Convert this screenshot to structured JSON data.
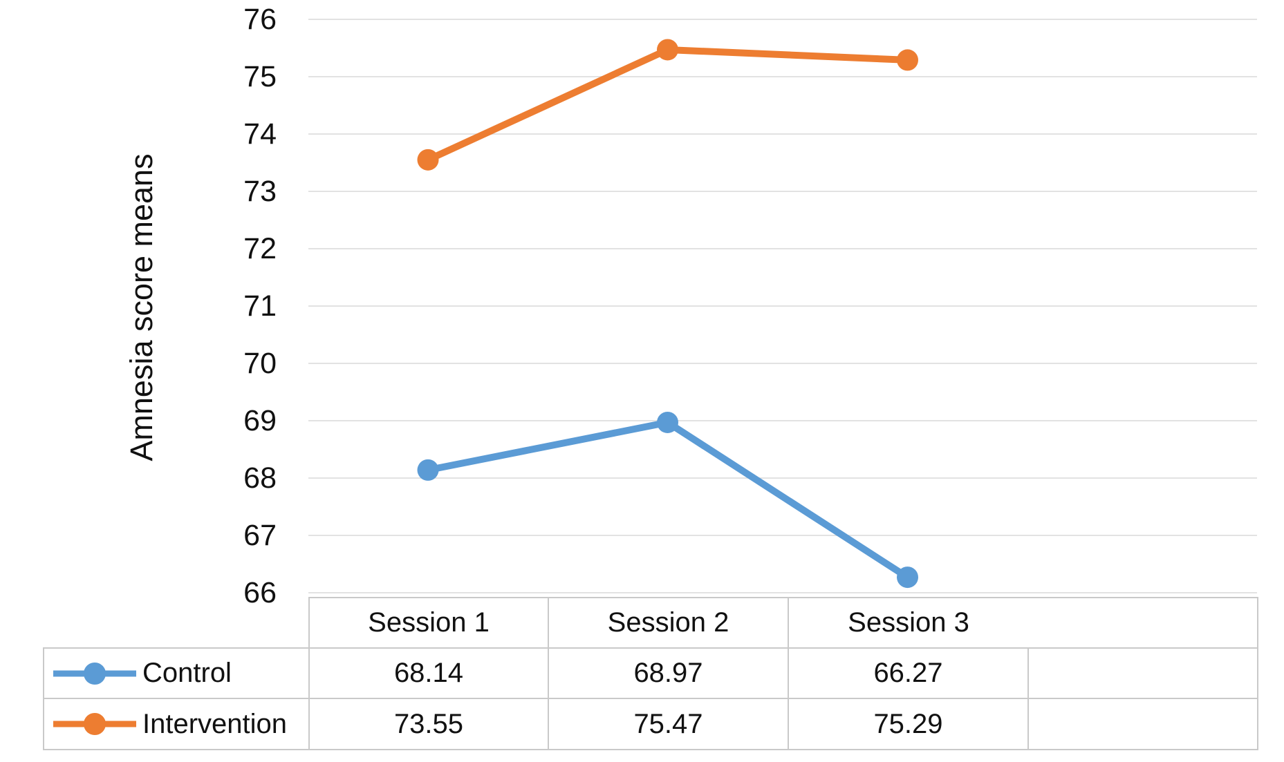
{
  "chart_data": {
    "type": "line",
    "title": "",
    "xlabel": "",
    "ylabel": "Amnesia score means",
    "categories": [
      "Session 1",
      "Session 2",
      "Session 3"
    ],
    "series": [
      {
        "name": "Control",
        "color": "#5B9BD5",
        "values": [
          68.14,
          68.97,
          66.27
        ],
        "values_display": [
          "68.14",
          "68.97",
          "66.27"
        ]
      },
      {
        "name": "Intervention",
        "color": "#ED7D31",
        "values": [
          73.55,
          75.47,
          75.29
        ],
        "values_display": [
          "73.55",
          "75.47",
          "75.29"
        ]
      }
    ],
    "ylim": [
      66,
      76
    ],
    "yticks": [
      76,
      75,
      74,
      73,
      72,
      71,
      70,
      69,
      68,
      67,
      66
    ],
    "grid": "horizontal",
    "gridline_color": "#E2E2E2",
    "marker": "circle",
    "legend_position": "data-table-left-column",
    "data_table_shown": true,
    "table_border_color": "#C9C9C9"
  }
}
